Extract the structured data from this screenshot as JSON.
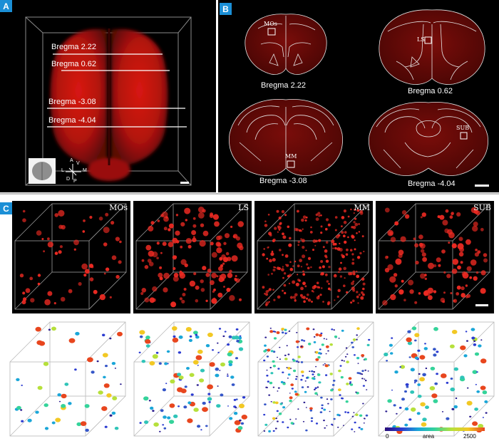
{
  "panel_a": {
    "tag": "A",
    "bregma_labels": [
      "Bregma 2.22",
      "Bregma 0.62",
      "Bregma -3.08",
      "Bregma -4.04"
    ],
    "orientation": {
      "a": "A",
      "v": "V",
      "l": "L",
      "m": "M",
      "d": "D",
      "p": "P"
    }
  },
  "panel_b": {
    "tag": "B",
    "sections": [
      {
        "caption": "Bregma 2.22",
        "region": "MOs"
      },
      {
        "caption": "Bregma 0.62",
        "region": "LS"
      },
      {
        "caption": "Bregma -3.08",
        "region": "MM"
      },
      {
        "caption": "Bregma -4.04",
        "region": "SUB"
      }
    ]
  },
  "panel_c": {
    "tag": "C",
    "regions": [
      "MOs",
      "LS",
      "MM",
      "SUB"
    ],
    "colorbar": {
      "min": "0",
      "label": "area",
      "max": "2500"
    }
  },
  "colors": {
    "signal": "#e8201c",
    "panel_bg": "#000000",
    "tag": "#1b8fd6"
  }
}
